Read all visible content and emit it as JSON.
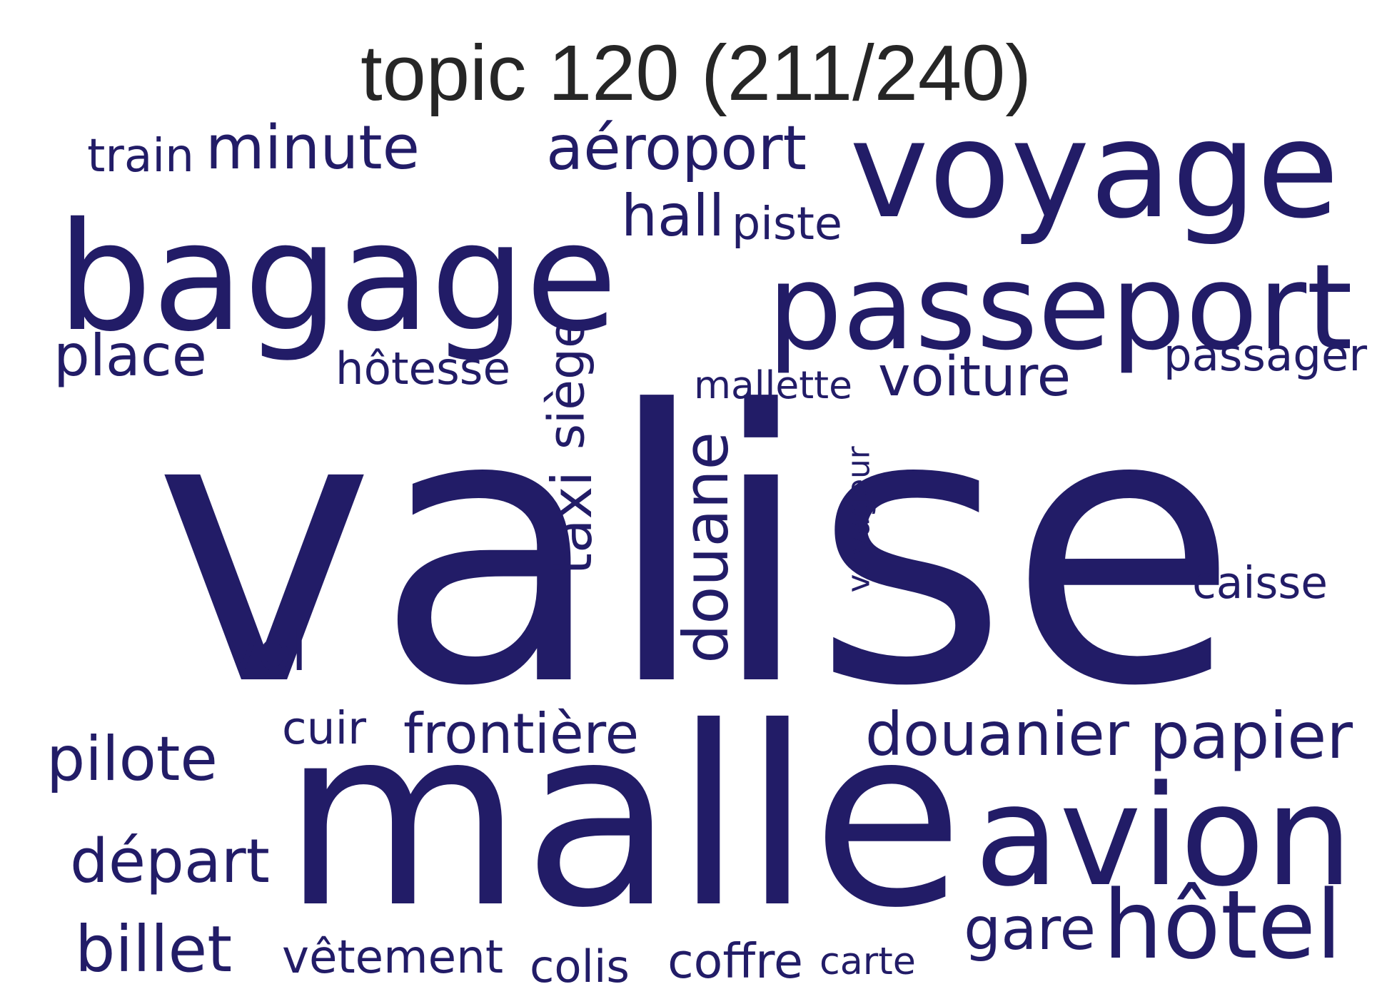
{
  "title": "topic 120 (211/240)",
  "word_color": "#221c67",
  "words": [
    {
      "text": "valise",
      "orientation": "horizontal"
    },
    {
      "text": "malle",
      "orientation": "horizontal"
    },
    {
      "text": "bagage",
      "orientation": "horizontal"
    },
    {
      "text": "voyage",
      "orientation": "horizontal"
    },
    {
      "text": "passeport",
      "orientation": "horizontal"
    },
    {
      "text": "avion",
      "orientation": "horizontal"
    },
    {
      "text": "hôtel",
      "orientation": "horizontal"
    },
    {
      "text": "douanier",
      "orientation": "horizontal"
    },
    {
      "text": "papier",
      "orientation": "horizontal"
    },
    {
      "text": "frontière",
      "orientation": "horizontal"
    },
    {
      "text": "aéroport",
      "orientation": "horizontal"
    },
    {
      "text": "minute",
      "orientation": "horizontal"
    },
    {
      "text": "voiture",
      "orientation": "horizontal"
    },
    {
      "text": "place",
      "orientation": "horizontal"
    },
    {
      "text": "pilote",
      "orientation": "horizontal"
    },
    {
      "text": "départ",
      "orientation": "horizontal"
    },
    {
      "text": "billet",
      "orientation": "horizontal"
    },
    {
      "text": "hall",
      "orientation": "horizontal"
    },
    {
      "text": "gare",
      "orientation": "horizontal"
    },
    {
      "text": "douane",
      "orientation": "vertical"
    },
    {
      "text": "siège",
      "orientation": "vertical"
    },
    {
      "text": "taxi",
      "orientation": "vertical"
    },
    {
      "text": "passager",
      "orientation": "horizontal"
    },
    {
      "text": "hôtesse",
      "orientation": "horizontal"
    },
    {
      "text": "vêtement",
      "orientation": "horizontal"
    },
    {
      "text": "coffre",
      "orientation": "horizontal"
    },
    {
      "text": "vol",
      "orientation": "horizontal"
    },
    {
      "text": "caisse",
      "orientation": "horizontal"
    },
    {
      "text": "piste",
      "orientation": "horizontal"
    },
    {
      "text": "colis",
      "orientation": "horizontal"
    },
    {
      "text": "train",
      "orientation": "horizontal"
    },
    {
      "text": "cuir",
      "orientation": "horizontal"
    },
    {
      "text": "mallette",
      "orientation": "horizontal"
    },
    {
      "text": "carte",
      "orientation": "horizontal"
    },
    {
      "text": "voyageur",
      "orientation": "vertical"
    }
  ]
}
